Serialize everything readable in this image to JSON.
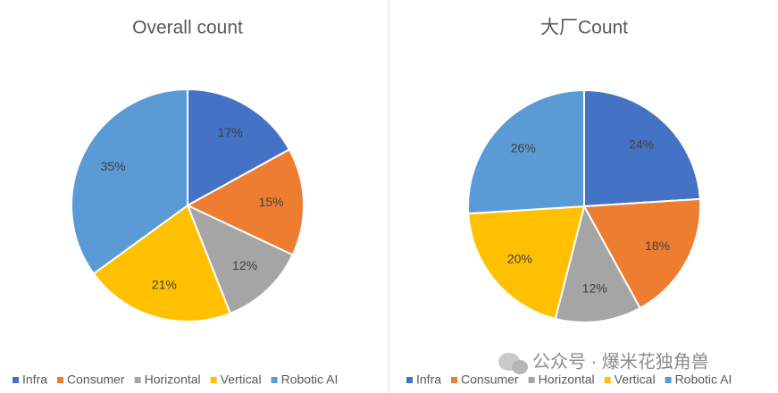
{
  "chart_data": [
    {
      "type": "pie",
      "title": "Overall count",
      "categories": [
        "Infra",
        "Consumer",
        "Horizontal",
        "Vertical",
        "Robotic AI"
      ],
      "values": [
        17,
        15,
        12,
        21,
        35
      ],
      "value_labels": [
        "17%",
        "15%",
        "12%",
        "21%",
        "35%"
      ],
      "colors": [
        "#4472c4",
        "#ed7d31",
        "#a5a5a5",
        "#ffc000",
        "#5b9bd5"
      ],
      "legend": "bottom"
    },
    {
      "type": "pie",
      "title": "大厂Count",
      "categories": [
        "Infra",
        "Consumer",
        "Horizontal",
        "Vertical",
        "Robotic AI"
      ],
      "values": [
        24,
        18,
        12,
        20,
        26
      ],
      "value_labels": [
        "24%",
        "18%",
        "12%",
        "20%",
        "26%"
      ],
      "colors": [
        "#4472c4",
        "#ed7d31",
        "#a5a5a5",
        "#ffc000",
        "#5b9bd5"
      ],
      "legend": "bottom"
    }
  ],
  "watermark": "公众号 · 爆米花独角兽"
}
